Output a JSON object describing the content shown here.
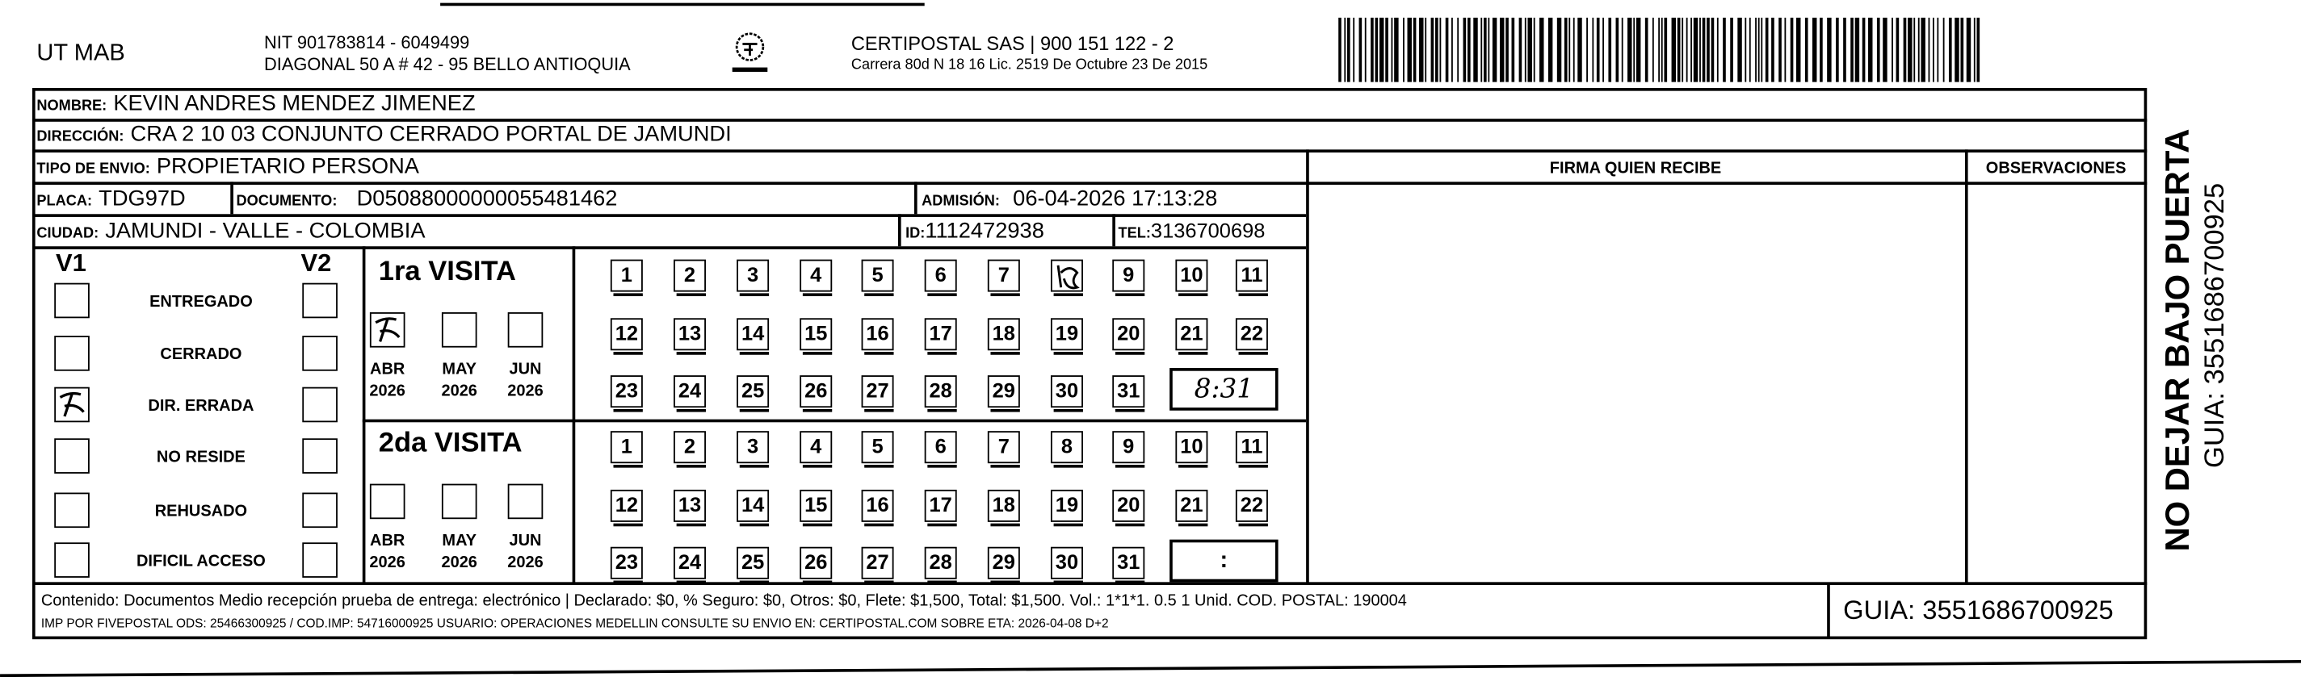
{
  "header": {
    "sender": "UT MAB",
    "nit": "NIT 901783814 - 6049499",
    "sender_address": "DIAGONAL 50 A # 42 - 95  BELLO  ANTIOQUIA",
    "logo_text": "CERTIPOSTAL",
    "company": "CERTIPOSTAL SAS | 900 151 122 - 2",
    "company_address": "Carrera 80d N 18 16  Lic. 2519 De Octubre 23 De 2015"
  },
  "recipient": {
    "nombre_label": "NOMBRE:",
    "nombre": "KEVIN ANDRES MENDEZ JIMENEZ",
    "direccion_label": "DIRECCIÓN:",
    "direccion": "CRA 2 10 03 CONJUNTO CERRADO PORTAL DE JAMUNDI",
    "tipo_label": "TIPO DE ENVIO:",
    "tipo": "PROPIETARIO PERSONA",
    "placa_label": "PLACA:",
    "placa": "TDG97D",
    "documento_label": "DOCUMENTO:",
    "documento": "D05088000000055481462",
    "admision_label": "ADMISIÓN:",
    "admision": "06-04-2026 17:13:28",
    "ciudad_label": "CIUDAD:",
    "ciudad": "JAMUNDI - VALLE - COLOMBIA",
    "id_label": "ID:",
    "id": "1112472938",
    "tel_label": "TEL:",
    "tel": "3136700698"
  },
  "firma_label": "FIRMA QUIEN RECIBE",
  "observaciones_label": "OBSERVACIONES",
  "v1_label": "V1",
  "v2_label": "V2",
  "statuses": [
    "ENTREGADO",
    "CERRADO",
    "DIR. ERRADA",
    "NO RESIDE",
    "REHUSADO",
    "DIFICIL ACCESO"
  ],
  "v1_checked": "DIR. ERRADA",
  "visits": [
    {
      "title": "1ra VISITA",
      "months": [
        {
          "m": "ABR",
          "y": "2026",
          "checked": true
        },
        {
          "m": "MAY",
          "y": "2026",
          "checked": false
        },
        {
          "m": "JUN",
          "y": "2026",
          "checked": false
        }
      ],
      "marked_day": "8",
      "time": "8:31"
    },
    {
      "title": "2da VISITA",
      "months": [
        {
          "m": "ABR",
          "y": "2026",
          "checked": false
        },
        {
          "m": "MAY",
          "y": "2026",
          "checked": false
        },
        {
          "m": "JUN",
          "y": "2026",
          "checked": false
        }
      ],
      "marked_day": null,
      "time": ":"
    }
  ],
  "days": [
    "1",
    "2",
    "3",
    "4",
    "5",
    "6",
    "7",
    "8",
    "9",
    "10",
    "11",
    "12",
    "13",
    "14",
    "15",
    "16",
    "17",
    "18",
    "19",
    "20",
    "21",
    "22",
    "23",
    "24",
    "25",
    "26",
    "27",
    "28",
    "29",
    "30",
    "31"
  ],
  "footer": {
    "line1": "Contenido: Documentos Medio recepción prueba de entrega: electrónico | Declarado: $0, % Seguro: $0, Otros: $0, Flete: $1,500, Total: $1,500. Vol.: 1*1*1. 0.5  1 Unid. COD. POSTAL: 190004",
    "line2": "IMP POR FIVEPOSTAL ODS: 25466300925 / COD.IMP: 54716000925 USUARIO: OPERACIONES MEDELLIN CONSULTE SU ENVIO EN: CERTIPOSTAL.COM SOBRE ETA: 2026-04-08 D+2",
    "guia": "GUIA: 3551686700925"
  },
  "side": {
    "warning": "NO DEJAR BAJO PUERTA",
    "guia": "GUIA: 3551686700925"
  }
}
